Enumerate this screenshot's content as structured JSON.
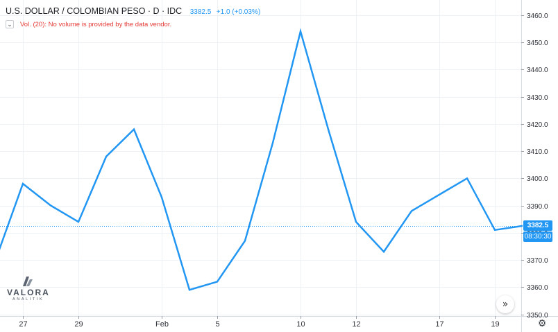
{
  "header": {
    "symbol_title": "U.S. DOLLAR / COLOMBIAN PESO · D · IDC",
    "last_price": "3382.5",
    "change": "+1.0 (+0.03%)",
    "price_color": "#2196f3"
  },
  "volume_notice": {
    "collapse_icon": "chevron-down-icon",
    "text": "Vol. (20): No volume is provided by the data vendor.",
    "color": "#e53935"
  },
  "price_tag": {
    "value": "3382.5",
    "color": "#2196f3"
  },
  "time_tag": {
    "value": "08:30:30",
    "color": "#2196f3"
  },
  "logo": {
    "name": "VALORA",
    "sub": "ANALITIK"
  },
  "controls": {
    "scroll_icon": "double-chevron-right-icon",
    "settings_icon": "gear-icon"
  },
  "chart_data": {
    "type": "line",
    "title": "U.S. DOLLAR / COLOMBIAN PESO",
    "x_tick_labels": [
      "27",
      "29",
      "Feb",
      "5",
      "10",
      "12",
      "17",
      "19"
    ],
    "y_tick_labels": [
      "3350.0",
      "3360.0",
      "3370.0",
      "3380.0",
      "3390.0",
      "3400.0",
      "3410.0",
      "3420.0",
      "3430.0",
      "3440.0",
      "3450.0",
      "3460.0"
    ],
    "ylim": [
      3349,
      3462
    ],
    "grid": true,
    "last_value_line": 3382.5,
    "series": [
      {
        "color": "#2196f3",
        "x_index": [
          -0.1,
          0.85,
          1.85,
          2.85,
          3.85,
          4.85,
          5.85,
          6.85,
          7.85,
          8.85,
          9.85,
          10.85,
          11.85,
          12.85,
          13.85,
          14.85,
          15.85,
          16.85,
          17.85,
          18.85
        ],
        "values": [
          3371,
          3398,
          3390,
          3384,
          3408,
          3418,
          3393,
          3359,
          3362,
          3377,
          3413,
          3454,
          3418,
          3384,
          3373,
          3388,
          3394,
          3400,
          3381,
          3382.5
        ]
      }
    ],
    "x_tick_index": [
      0.85,
      2.85,
      5.85,
      7.85,
      10.85,
      12.85,
      15.85,
      17.85
    ]
  }
}
